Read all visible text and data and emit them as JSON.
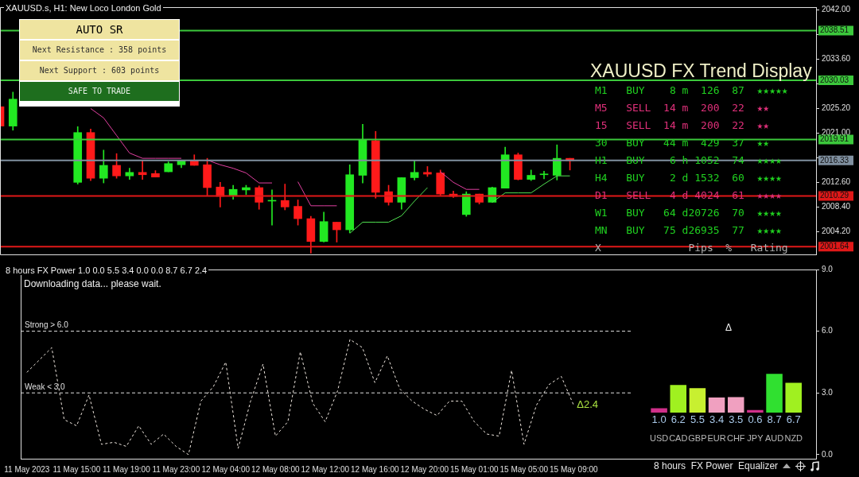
{
  "chart_data": [
    {
      "type": "candlestick",
      "title": "XAUUSD.s, H1:  New Loco London Gold",
      "categories": [
        null,
        null,
        null,
        null,
        null,
        null,
        null,
        null,
        null,
        null,
        null,
        null,
        null,
        null,
        null,
        null,
        null,
        null,
        null,
        null,
        null,
        null,
        null,
        null,
        null,
        null,
        null,
        null,
        null,
        null,
        null,
        null,
        null,
        null,
        null,
        null,
        null,
        null,
        null,
        null,
        null,
        null,
        null,
        null,
        null,
        null,
        null,
        null,
        null,
        null,
        null,
        null,
        null,
        null,
        null,
        null,
        null,
        null,
        null,
        null,
        null,
        null,
        null,
        null
      ],
      "ohlc": [
        [
          2025.5,
          2025.5,
          2022.2,
          2022.2
        ],
        [
          2022.2,
          2028.0,
          2021.5,
          2026.8
        ],
        null,
        null,
        null,
        null,
        [
          2012.6,
          2022.1,
          2012.3,
          2021.1
        ],
        [
          2021.1,
          2021.7,
          2012.9,
          2013.3
        ],
        [
          2013.3,
          2018.1,
          2012.5,
          2015.5
        ],
        [
          2015.5,
          2017.5,
          2013.3,
          2013.7
        ],
        [
          2013.7,
          2015.0,
          2013.1,
          2014.3
        ],
        [
          2014.3,
          2016.4,
          2013.1,
          2013.9
        ],
        [
          2014.1,
          2014.6,
          2013.5,
          2013.5
        ],
        [
          2014.4,
          2016.1,
          2014.4,
          2015.8
        ],
        [
          2015.6,
          2016.4,
          2015.1,
          2016.3
        ],
        [
          2016.3,
          2017.3,
          2015.5,
          2015.5
        ],
        [
          2015.6,
          2016.7,
          2010.4,
          2011.7
        ],
        [
          2011.8,
          2012.6,
          2008.4,
          2010.2
        ],
        [
          2010.4,
          2012.1,
          2009.7,
          2011.4
        ],
        [
          2011.3,
          2012.1,
          2010.5,
          2011.7
        ],
        [
          2011.7,
          2012.0,
          2008.0,
          2009.2
        ],
        [
          2009.4,
          2011.3,
          2005.3,
          2009.5
        ],
        [
          2009.5,
          2012.3,
          2007.9,
          2008.4
        ],
        [
          2008.5,
          2009.6,
          2005.3,
          2006.4
        ],
        [
          2006.4,
          2006.8,
          2000.5,
          2002.5
        ],
        [
          2002.5,
          2007.5,
          2002.4,
          2005.9
        ],
        [
          2005.8,
          2005.8,
          2002.4,
          2004.5
        ],
        [
          2004.5,
          2015.6,
          2004.0,
          2013.9
        ],
        [
          2013.8,
          2022.5,
          2012.5,
          2019.8
        ],
        [
          2019.7,
          2021.3,
          2009.9,
          2010.9
        ],
        [
          2011.0,
          2012.1,
          2008.7,
          2009.2
        ],
        [
          2009.2,
          2013.4,
          2008.0,
          2013.4
        ],
        [
          2013.4,
          2016.3,
          2013.0,
          2014.3
        ],
        [
          2014.3,
          2015.3,
          2013.6,
          2014.0
        ],
        [
          2014.2,
          2014.7,
          2010.4,
          2010.6
        ],
        [
          2010.6,
          2011.1,
          2010.0,
          2010.2
        ],
        [
          2007.1,
          2011.0,
          2006.8,
          2010.6
        ],
        [
          2010.6,
          2010.6,
          2008.9,
          2009.2
        ],
        [
          2009.2,
          2011.8,
          2009.2,
          2011.7
        ],
        [
          2011.6,
          2018.6,
          2011.6,
          2017.3
        ],
        [
          2017.3,
          2017.6,
          2013.0,
          2013.1
        ],
        [
          2013.1,
          2014.7,
          2012.9,
          2013.8
        ],
        [
          2013.9,
          2014.5,
          2013.2,
          2014.0
        ],
        [
          2013.8,
          2019.0,
          2013.0,
          2016.7
        ],
        [
          2016.7,
          2016.7,
          2014.7,
          2016.3
        ],
        null,
        null,
        null,
        null,
        null,
        null,
        null,
        null,
        null,
        null,
        null,
        null,
        null,
        null,
        null,
        null,
        null,
        null,
        null
      ],
      "series": [
        {
          "type": "line",
          "color": "#e040a0",
          "values": [
            null,
            null,
            null,
            null,
            null,
            null,
            null,
            2025.2,
            2023.6,
            2020.6,
            2017.6,
            2016.7,
            2016.7,
            2016.7,
            2016.7,
            null,
            2016.4,
            2015.6,
            2015.0,
            2014.2,
            2012.5,
            2012.5,
            null,
            2012.7,
            2008.6,
            2008.6,
            2008.6,
            null,
            null,
            null,
            null,
            null,
            null,
            null,
            2014.4,
            2012.6,
            2011.4,
            2011.4,
            null,
            null,
            null,
            null,
            null,
            null,
            null,
            null,
            null,
            null,
            null,
            null,
            null,
            null,
            null,
            null,
            null,
            null,
            null,
            null,
            null,
            null,
            null,
            null,
            null,
            null
          ]
        },
        {
          "type": "line",
          "color": "#50e050",
          "values": [
            null,
            null,
            null,
            null,
            null,
            null,
            null,
            null,
            null,
            null,
            null,
            null,
            null,
            null,
            null,
            null,
            null,
            null,
            null,
            null,
            null,
            null,
            null,
            null,
            null,
            null,
            null,
            2003.9,
            2005.8,
            2005.8,
            2005.8,
            2006.9,
            2009.4,
            2011.7,
            null,
            null,
            null,
            null,
            2009.2,
            2010.8,
            2010.8,
            2010.8,
            2012.3,
            2013.7,
            2013.7,
            null,
            null,
            null,
            null,
            null,
            null,
            null,
            null,
            null,
            null,
            null,
            null,
            null,
            null,
            null,
            null,
            null,
            null,
            null
          ]
        }
      ],
      "ylim": [
        2000.3,
        2042.5
      ],
      "yticks": [
        {
          "value": 2042,
          "label": "2042.00"
        },
        {
          "value": 2037.8,
          "label": null
        },
        {
          "value": 2033.6,
          "label": "2033.60"
        },
        {
          "value": 2029.4,
          "label": null
        },
        {
          "value": 2025.2,
          "label": "2025.20"
        },
        {
          "value": 2021,
          "label": "2021.00"
        },
        {
          "value": 2016.8,
          "label": null
        },
        {
          "value": 2012.6,
          "label": "2012.60"
        },
        {
          "value": 2008.4,
          "label": "2008.40"
        },
        {
          "value": 2004.2,
          "label": "2004.20"
        }
      ],
      "ref_lines": [
        {
          "axis": "y",
          "value": 2038.51,
          "label": "2038.51",
          "color": "#3cc83c"
        },
        {
          "axis": "y",
          "value": 2030.03,
          "label": "2030.03",
          "color": "#3cc83c"
        },
        {
          "axis": "y",
          "value": 2019.91,
          "label": "2019.91",
          "color": "#3cc83c"
        },
        {
          "axis": "y",
          "value": 2016.33,
          "label": "2016.33",
          "color": "#8090a0"
        },
        {
          "axis": "y",
          "value": 2010.29,
          "label": "2010.29",
          "color": "#e01818"
        },
        {
          "axis": "y",
          "value": 2001.64,
          "label": "2001.64",
          "color": "#e01818"
        }
      ],
      "tick_labels": "y"
    },
    {
      "type": "line",
      "title": "8 hours FX Power 1.0 0.0 5.5 3.4 0.0 0.0 8.7 6.7 2.4",
      "categories": [
        "11 May 2023",
        null,
        null,
        null,
        "11 May 15:00",
        null,
        null,
        null,
        "11 May 19:00",
        null,
        null,
        null,
        "11 May 23:00",
        null,
        null,
        null,
        "12 May 04:00",
        null,
        null,
        null,
        "12 May 08:00",
        null,
        null,
        null,
        "12 May 12:00",
        null,
        null,
        null,
        "12 May 16:00",
        null,
        null,
        null,
        "12 May 20:00",
        null,
        null,
        null,
        "15 May 01:00",
        null,
        null,
        null,
        "15 May 05:00",
        null,
        null,
        null,
        "15 May 09:00",
        null,
        null,
        null,
        null,
        null,
        null,
        null,
        null,
        null,
        null,
        null,
        null,
        null,
        null,
        null,
        null,
        null,
        null,
        null
      ],
      "series": [
        {
          "color": "#f0e8e0",
          "values": [
            4.0,
            null,
            5.2,
            1.7,
            1.4,
            2.9,
            0.5,
            0.6,
            0.4,
            1.4,
            0.5,
            1.0,
            0.4,
            0.0,
            2.6,
            3.3,
            4.5,
            0.3,
            2.6,
            4.4,
            0.9,
            1.6,
            5.0,
            2.5,
            1.6,
            3.1,
            5.6,
            5.2,
            3.5,
            4.8,
            3.2,
            2.6,
            2.2,
            1.9,
            2.6,
            2.6,
            1.6,
            1.0,
            0.9,
            4.1,
            0.5,
            2.4,
            3.4,
            3.8,
            2.4,
            null,
            null,
            null,
            null,
            null,
            null,
            null,
            null,
            null,
            null,
            null,
            null,
            null,
            null,
            null,
            null,
            null,
            null,
            null
          ]
        }
      ],
      "ylim": [
        -0.2,
        9
      ],
      "yticks": [
        {
          "value": 0,
          "label": "0.0"
        },
        {
          "value": 3,
          "label": "3.0"
        },
        {
          "value": 6,
          "label": "6.0"
        },
        {
          "value": 9,
          "label": "9.0"
        }
      ],
      "line_style": "dashed",
      "marker": "none",
      "ref_lines": [
        {
          "axis": "y",
          "value": 6,
          "label": "Strong > 6.0",
          "color": "#e0e0e0",
          "line_style": "dashed"
        },
        {
          "axis": "y",
          "value": 3,
          "label": "Weak < 3.0",
          "color": "#e0e0e0",
          "line_style": "dashed"
        }
      ],
      "annotations": [
        "Downloading data... please wait.",
        {
          "text": "Δ2.4",
          "x": "15 May 09:00",
          "y": 2.4
        }
      ]
    },
    {
      "type": "bar",
      "subtitle": "8 hours  FX Power  Equalizer",
      "categories": [
        "USD",
        "CAD",
        "GBP",
        "EUR",
        "CHF",
        "JPY",
        "AUD",
        "NZD"
      ],
      "values": [
        1.0,
        6.2,
        5.5,
        3.4,
        3.5,
        0.6,
        8.7,
        6.7
      ],
      "value_labels": [
        "1.0",
        "6.2",
        "5.5",
        "3.4",
        "3.5",
        "0.6",
        "8.7",
        "6.7"
      ],
      "colors": [
        "#d0308a",
        "#a0f020",
        "#c8f030",
        "#f0a0c0",
        "#f0a0c0",
        "#d0308a",
        "#30e030",
        "#a0f020"
      ],
      "annotations": [
        "Δ"
      ]
    },
    {
      "type": "other",
      "title": "XAUUSD FX Trend Display",
      "annotations": [
        "M1   BUY    8 m  126  87  ★★★★★",
        "M5   SELL  14 m  200  22  ★★",
        "15   SELL  14 m  200  22  ★★",
        "30   BUY   44 m  429  37  ★★",
        "H1   BUY    6 h 1052  74  ★★★★",
        "H4   BUY    2 d 1532  60  ★★★★",
        "D1   SELL   4 d 4024  61  ★★★★",
        "W1   BUY   64 d20726  70  ★★★★",
        "MN   BUY   75 d26935  77  ★★★★",
        "X              Pips  %   Rating"
      ],
      "colors": [
        "#20d020",
        "#e0307a",
        "#e0307a",
        "#20d020",
        "#20d020",
        "#20d020",
        "#e0307a",
        "#20d020",
        "#20d020",
        "#b0b0b0"
      ]
    },
    {
      "type": "other",
      "title": "AUTO SR",
      "annotations": [
        "Next Resistance : 358 points",
        "Next Support : 603 points",
        "SAFE TO TRADE"
      ]
    }
  ]
}
